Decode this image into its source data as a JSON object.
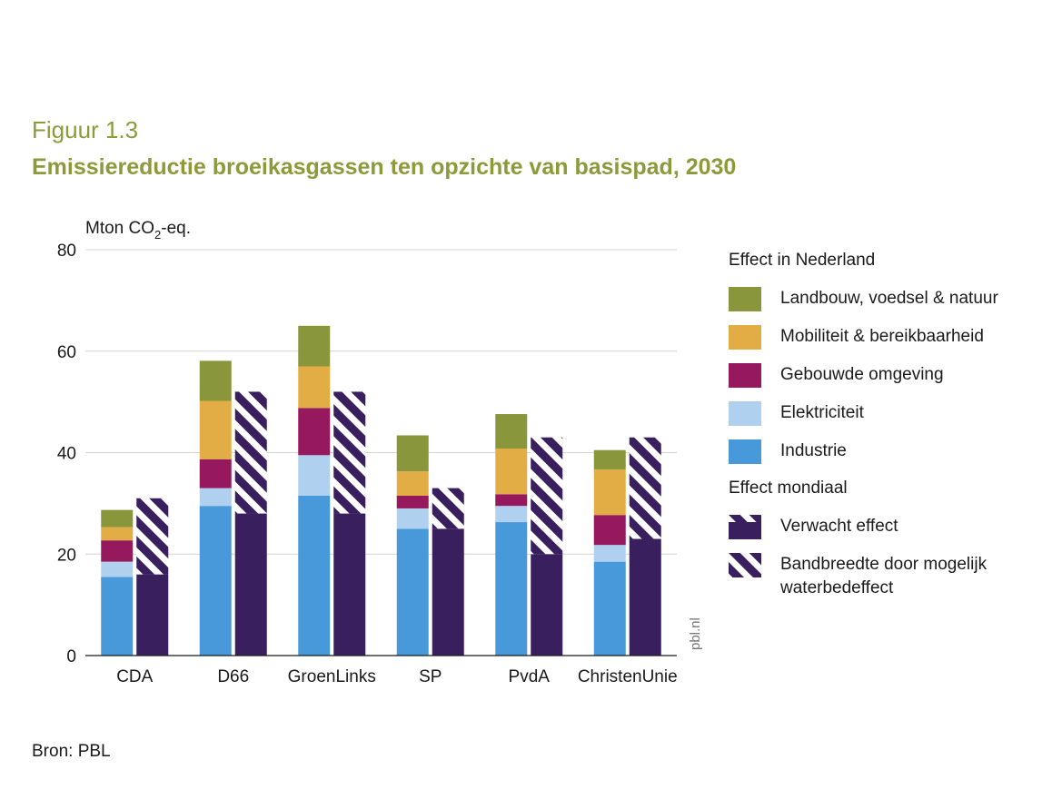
{
  "figure_label": "Figuur 1.3",
  "source": "Bron: PBL",
  "watermark": "pbl.nl",
  "colors": {
    "landbouw": "#8a963c",
    "mobiliteit": "#e2ad45",
    "gebouwde": "#96195e",
    "elektriciteit": "#afd0ef",
    "industrie": "#4899da",
    "mondiaal": "#3a1f5f",
    "title": "#8c9a3a"
  },
  "legend": {
    "nl_heading": "Effect in Nederland",
    "nl_items": [
      {
        "key": "landbouw",
        "label": "Landbouw, voedsel & natuur"
      },
      {
        "key": "mobiliteit",
        "label": "Mobiliteit & bereikbaarheid"
      },
      {
        "key": "gebouwde",
        "label": "Gebouwde omgeving"
      },
      {
        "key": "elektriciteit",
        "label": "Elektriciteit"
      },
      {
        "key": "industrie",
        "label": "Industrie"
      }
    ],
    "world_heading": "Effect mondiaal",
    "world_items": [
      {
        "key": "verwacht",
        "label": "Verwacht effect"
      },
      {
        "key": "bandbreedte",
        "label": "Bandbreedte door mogelijk waterbedeffect"
      }
    ]
  },
  "chart_data": {
    "type": "bar",
    "title": "Emissiereductie broeikasgassen ten opzichte van basispad, 2030",
    "ylabel_prefix": "Mton CO",
    "ylabel_sub": "2",
    "ylabel_suffix": "-eq.",
    "ylim": [
      0,
      80
    ],
    "yticks": [
      0,
      20,
      40,
      60,
      80
    ],
    "grid": true,
    "categories": [
      "CDA",
      "D66",
      "GroenLinks",
      "SP",
      "PvdA",
      "ChristenUnie"
    ],
    "stacked_series": [
      {
        "key": "industrie",
        "name": "Industrie",
        "values": [
          15.5,
          29.5,
          31.5,
          25.0,
          26.3,
          18.5
        ]
      },
      {
        "key": "elektriciteit",
        "name": "Elektriciteit",
        "values": [
          3.0,
          3.5,
          8.0,
          4.0,
          3.2,
          3.3
        ]
      },
      {
        "key": "gebouwde",
        "name": "Gebouwde omgeving",
        "values": [
          4.2,
          5.7,
          9.3,
          2.5,
          2.3,
          5.9
        ]
      },
      {
        "key": "mobiliteit",
        "name": "Mobiliteit & bereikbaarheid",
        "values": [
          2.6,
          11.5,
          8.2,
          4.8,
          9.0,
          9.0
        ]
      },
      {
        "key": "landbouw",
        "name": "Landbouw, voedsel & natuur",
        "values": [
          3.4,
          7.9,
          8.0,
          7.1,
          6.8,
          3.8
        ]
      }
    ],
    "mondiaal": {
      "verwacht": {
        "name": "Verwacht effect",
        "values": [
          16.0,
          28.0,
          28.0,
          25.0,
          20.0,
          23.0
        ]
      },
      "bandbreedte_top": {
        "name": "Bandbreedte door mogelijk waterbedeffect",
        "values": [
          31.0,
          52.0,
          52.0,
          33.0,
          43.0,
          43.0
        ]
      }
    }
  }
}
